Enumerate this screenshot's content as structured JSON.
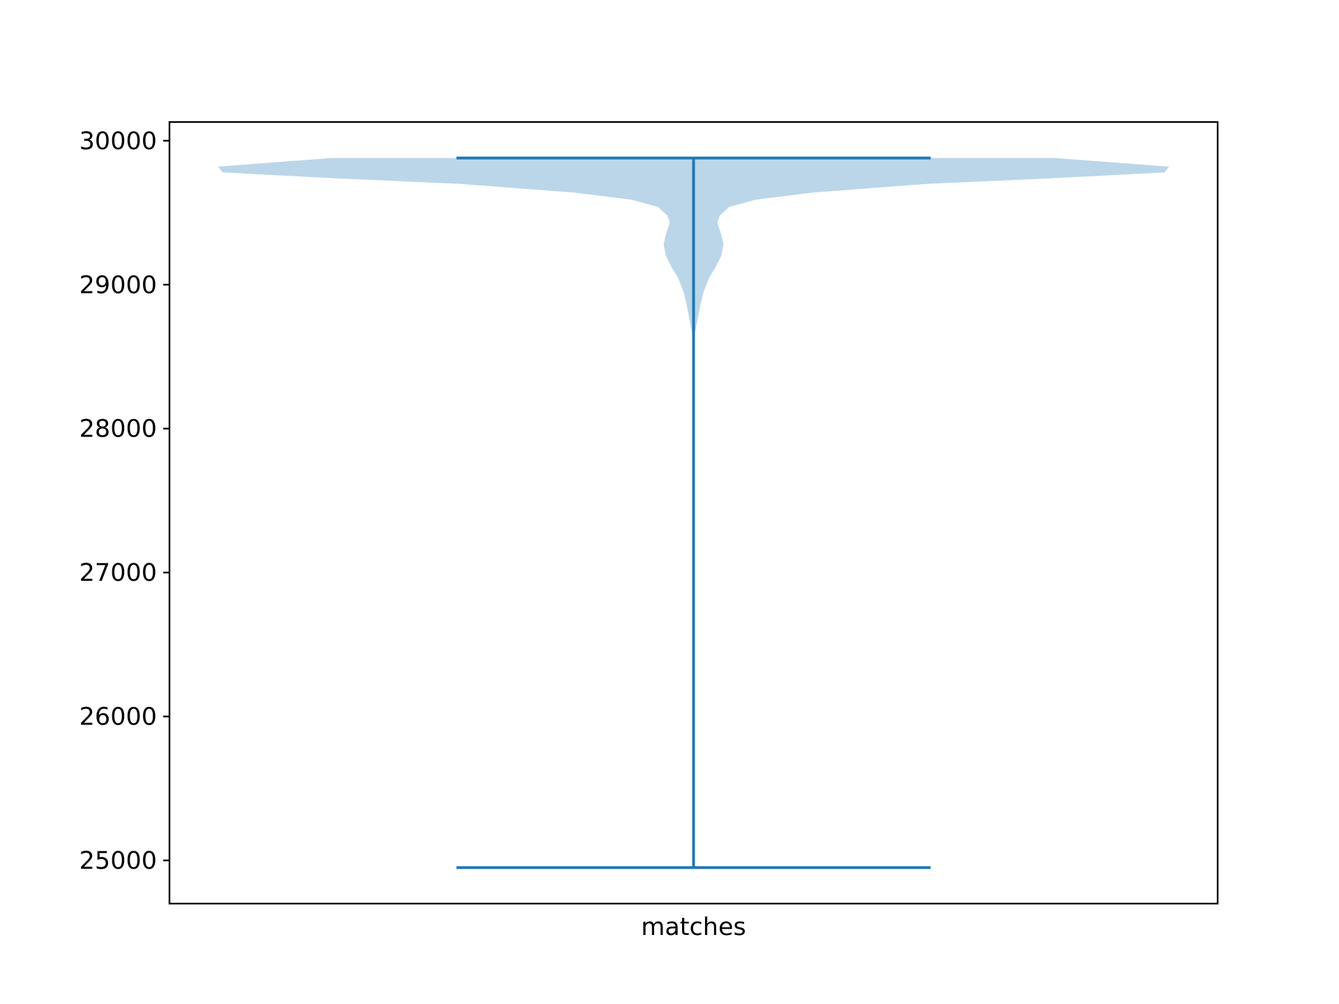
{
  "chart_data": {
    "type": "violin",
    "title": "",
    "xlabel": "",
    "ylabel": "",
    "categories": [
      "matches"
    ],
    "ylim": [
      24700,
      30130
    ],
    "yticks": [
      25000,
      26000,
      27000,
      28000,
      29000,
      30000
    ],
    "ytick_labels": [
      "25000",
      "26000",
      "27000",
      "28000",
      "29000",
      "30000"
    ],
    "grid": false,
    "legend": "none",
    "colors": {
      "body": "#1f77b4",
      "body_alpha": 0.3,
      "lines": "#1f77b4"
    },
    "series": [
      {
        "category": "matches",
        "min": 24950,
        "max": 29880,
        "density_profile": [
          {
            "y": 29880,
            "width": 0.76
          },
          {
            "y": 29820,
            "width": 1.0
          },
          {
            "y": 29780,
            "width": 0.99
          },
          {
            "y": 29740,
            "width": 0.76
          },
          {
            "y": 29700,
            "width": 0.49
          },
          {
            "y": 29640,
            "width": 0.25
          },
          {
            "y": 29590,
            "width": 0.13
          },
          {
            "y": 29540,
            "width": 0.075
          },
          {
            "y": 29480,
            "width": 0.055
          },
          {
            "y": 29430,
            "width": 0.05
          },
          {
            "y": 29350,
            "width": 0.058
          },
          {
            "y": 29280,
            "width": 0.063
          },
          {
            "y": 29200,
            "width": 0.058
          },
          {
            "y": 29120,
            "width": 0.046
          },
          {
            "y": 29050,
            "width": 0.033
          },
          {
            "y": 28950,
            "width": 0.021
          },
          {
            "y": 28850,
            "width": 0.014
          },
          {
            "y": 28750,
            "width": 0.008
          },
          {
            "y": 28650,
            "width": 0.002
          },
          {
            "y": 28600,
            "width": 0.0
          }
        ]
      }
    ]
  }
}
